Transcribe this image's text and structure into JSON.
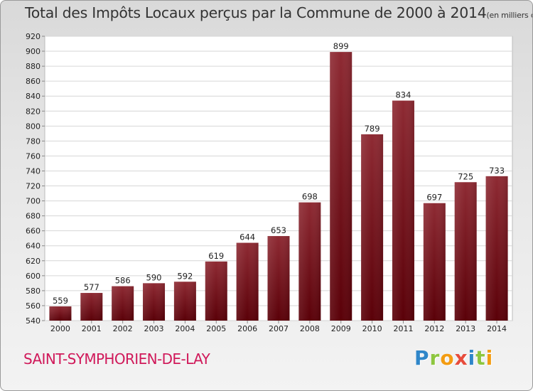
{
  "chart_data": {
    "type": "bar",
    "title": "Total des Impôts Locaux perçus par la Commune de 2000 à 2014",
    "unit_note": "(en milliers d'€)",
    "categories": [
      "2000",
      "2001",
      "2002",
      "2003",
      "2004",
      "2005",
      "2006",
      "2007",
      "2008",
      "2009",
      "2010",
      "2011",
      "2012",
      "2013",
      "2014"
    ],
    "values": [
      559,
      577,
      586,
      590,
      592,
      619,
      644,
      653,
      698,
      899,
      789,
      834,
      697,
      725,
      733
    ],
    "ylim": [
      540,
      920
    ],
    "ytick_step": 20,
    "xlabel": "",
    "ylabel": "",
    "grid": true,
    "bar_color": "#8b1a22"
  },
  "commune": "SAINT-SYMPHORIEN-DE-LAY",
  "logo": {
    "letters": [
      "P",
      "r",
      "o",
      "x",
      "i",
      "t",
      "i"
    ],
    "colors": [
      "#2f86c9",
      "#8dc63f",
      "#f39c12",
      "#e74c3c",
      "#2f86c9",
      "#8dc63f",
      "#f39c12"
    ]
  }
}
